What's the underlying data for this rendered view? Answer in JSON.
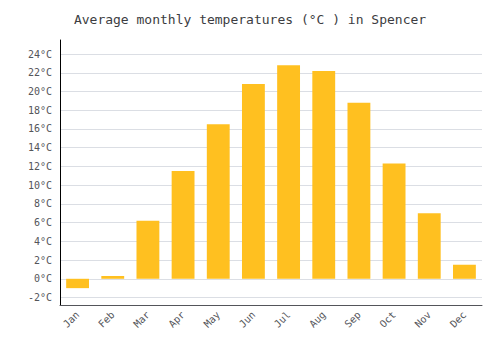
{
  "chart_data": {
    "type": "bar",
    "title": "Average monthly temperatures (°C ) in Spencer",
    "categories": [
      "Jan",
      "Feb",
      "Mar",
      "Apr",
      "May",
      "Jun",
      "Jul",
      "Aug",
      "Sep",
      "Oct",
      "Nov",
      "Dec"
    ],
    "values": [
      -1.0,
      0.3,
      6.2,
      11.5,
      16.5,
      20.8,
      22.8,
      22.2,
      18.8,
      12.3,
      7.0,
      1.5
    ],
    "color": "#FFC020",
    "ylim": [
      -2.8,
      25.5
    ],
    "yticks": [
      {
        "value": -2,
        "label": "-2°C"
      },
      {
        "value": 0,
        "label": "0°C"
      },
      {
        "value": 2,
        "label": "2°C"
      },
      {
        "value": 4,
        "label": "4°C"
      },
      {
        "value": 6,
        "label": "6°C"
      },
      {
        "value": 8,
        "label": "8°C"
      },
      {
        "value": 10,
        "label": "10°C"
      },
      {
        "value": 12,
        "label": "12°C"
      },
      {
        "value": 14,
        "label": "14°C"
      },
      {
        "value": 16,
        "label": "16°C"
      },
      {
        "value": 18,
        "label": "18°C"
      },
      {
        "value": 20,
        "label": "20°C"
      },
      {
        "value": 22,
        "label": "22°C"
      },
      {
        "value": 24,
        "label": "24°C"
      }
    ],
    "grid": true
  }
}
